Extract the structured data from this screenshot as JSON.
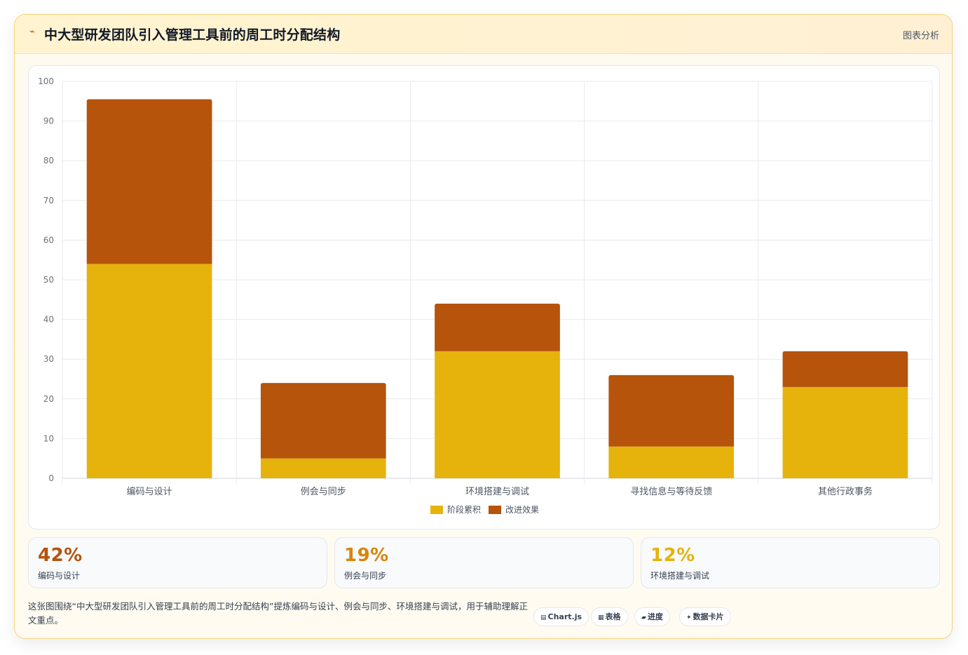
{
  "header": {
    "icon": "sparkle-icon",
    "title": "中大型研发团队引入管理工具前的周工时分配结构",
    "link": "图表分析"
  },
  "chart_data": {
    "type": "bar",
    "stacked": true,
    "categories": [
      "编码与设计",
      "例会与同步",
      "环境搭建与调试",
      "寻找信息与等待反馈",
      "其他行政事务"
    ],
    "series": [
      {
        "name": "阶段累积",
        "color": "#e6b30c",
        "values": [
          54,
          5,
          32,
          8,
          23
        ]
      },
      {
        "name": "改进效果",
        "color": "#b5540a",
        "values": [
          41.5,
          19,
          12,
          18,
          9
        ]
      }
    ],
    "ylim": [
      0,
      100
    ],
    "yticks": [
      0,
      10,
      20,
      30,
      40,
      50,
      60,
      70,
      80,
      90,
      100
    ],
    "grid": true,
    "legend": "bottom"
  },
  "stats": [
    {
      "value": "42%",
      "label": "编码与设计",
      "color": "#b45309"
    },
    {
      "value": "19%",
      "label": "例会与同步",
      "color": "#d9850a"
    },
    {
      "value": "12%",
      "label": "环境搭建与调试",
      "color": "#e6b30c"
    }
  ],
  "note": "这张图围绕“中大型研发团队引入管理工具前的周工时分配结构”提炼编码与设计、例会与同步、环境搭建与调试，用于辅助理解正文重点。",
  "chips": [
    {
      "icon": "▤",
      "label": "Chart.js"
    },
    {
      "icon": "▦",
      "label": "表格"
    },
    {
      "icon": "▰",
      "label": "进度"
    },
    {
      "icon": "✦",
      "label": "数据卡片"
    }
  ]
}
